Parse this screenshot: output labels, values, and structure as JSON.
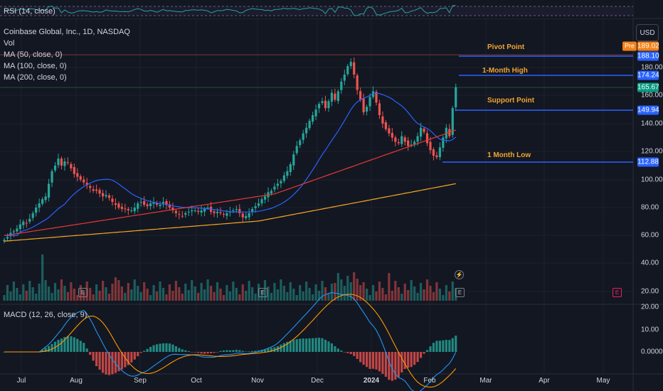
{
  "symbol_title": "Coinbase Global, Inc., 1D, NASDAQ",
  "indicators": {
    "rsi": "RSI (14, close)",
    "vol": "Vol",
    "ma50": "MA (50, close, 0)",
    "ma100": "MA (100, close, 0)",
    "ma200": "MA (200, close, 0)",
    "macd": "MACD (12, 26, close, 9)"
  },
  "currency_button": "USD",
  "colors": {
    "background": "#131722",
    "up": "#26a69a",
    "down": "#ef5350",
    "ma50": "#2962ff",
    "ma100": "#e53935",
    "ma200": "#f5a623",
    "level_line": "#2962ff",
    "annotation": "#f0a530",
    "macd_line": "#2196f3",
    "signal_line": "#ff9800"
  },
  "chart_data": {
    "type": "candlestick",
    "y_axis_ticks": [
      "180.00",
      "160.00",
      "140.00",
      "120.00",
      "100.00",
      "80.00",
      "60.00",
      "40.00",
      "20.00"
    ],
    "macd_axis_ticks": [
      "20.00",
      "10.00",
      "0.0000"
    ],
    "x_axis_ticks": [
      "Jul",
      "Aug",
      "Sep",
      "Oct",
      "Nov",
      "Dec",
      "2024",
      "Feb",
      "Mar",
      "Apr",
      "May"
    ],
    "price_labels": {
      "pre": "Pre",
      "pre_price": "189.02",
      "pivot": "188.10",
      "month_high": "174.24",
      "last": "165.67",
      "support": "149.94",
      "month_low": "112.88"
    },
    "annotations": [
      {
        "text": "Pivot Point",
        "level": 188.1
      },
      {
        "text": "1-Month High",
        "level": 174.24
      },
      {
        "text": "Support Point",
        "level": 149.94
      },
      {
        "text": "1 Month Low",
        "level": 112.88
      }
    ],
    "closes": [
      57,
      59,
      62,
      63,
      65,
      68,
      70,
      69,
      72,
      76,
      80,
      83,
      86,
      88,
      97,
      106,
      110,
      115,
      110,
      113,
      112,
      108,
      104,
      102,
      100,
      98,
      96,
      94,
      92,
      92,
      90,
      88,
      89,
      87,
      84,
      82,
      80,
      79,
      79,
      78,
      78,
      80,
      83,
      84,
      82,
      81,
      83,
      84,
      82,
      82,
      84,
      82,
      80,
      78,
      76,
      75,
      74,
      76,
      77,
      78,
      78,
      77,
      78,
      79,
      80,
      77,
      76,
      77,
      76,
      75,
      76,
      77,
      78,
      79,
      76,
      73,
      74,
      76,
      79,
      81,
      83,
      86,
      88,
      91,
      92,
      95,
      97,
      99,
      103,
      106,
      111,
      118,
      124,
      128,
      133,
      137,
      142,
      146,
      150,
      154,
      156,
      151,
      156,
      162,
      157,
      163,
      170,
      175,
      181,
      184,
      175,
      164,
      157,
      148,
      152,
      159,
      163,
      155,
      146,
      140,
      136,
      133,
      130,
      127,
      126,
      131,
      127,
      124,
      125,
      127,
      131,
      137,
      134,
      126,
      121,
      117,
      116,
      123,
      130,
      137,
      131,
      151,
      166
    ]
  }
}
